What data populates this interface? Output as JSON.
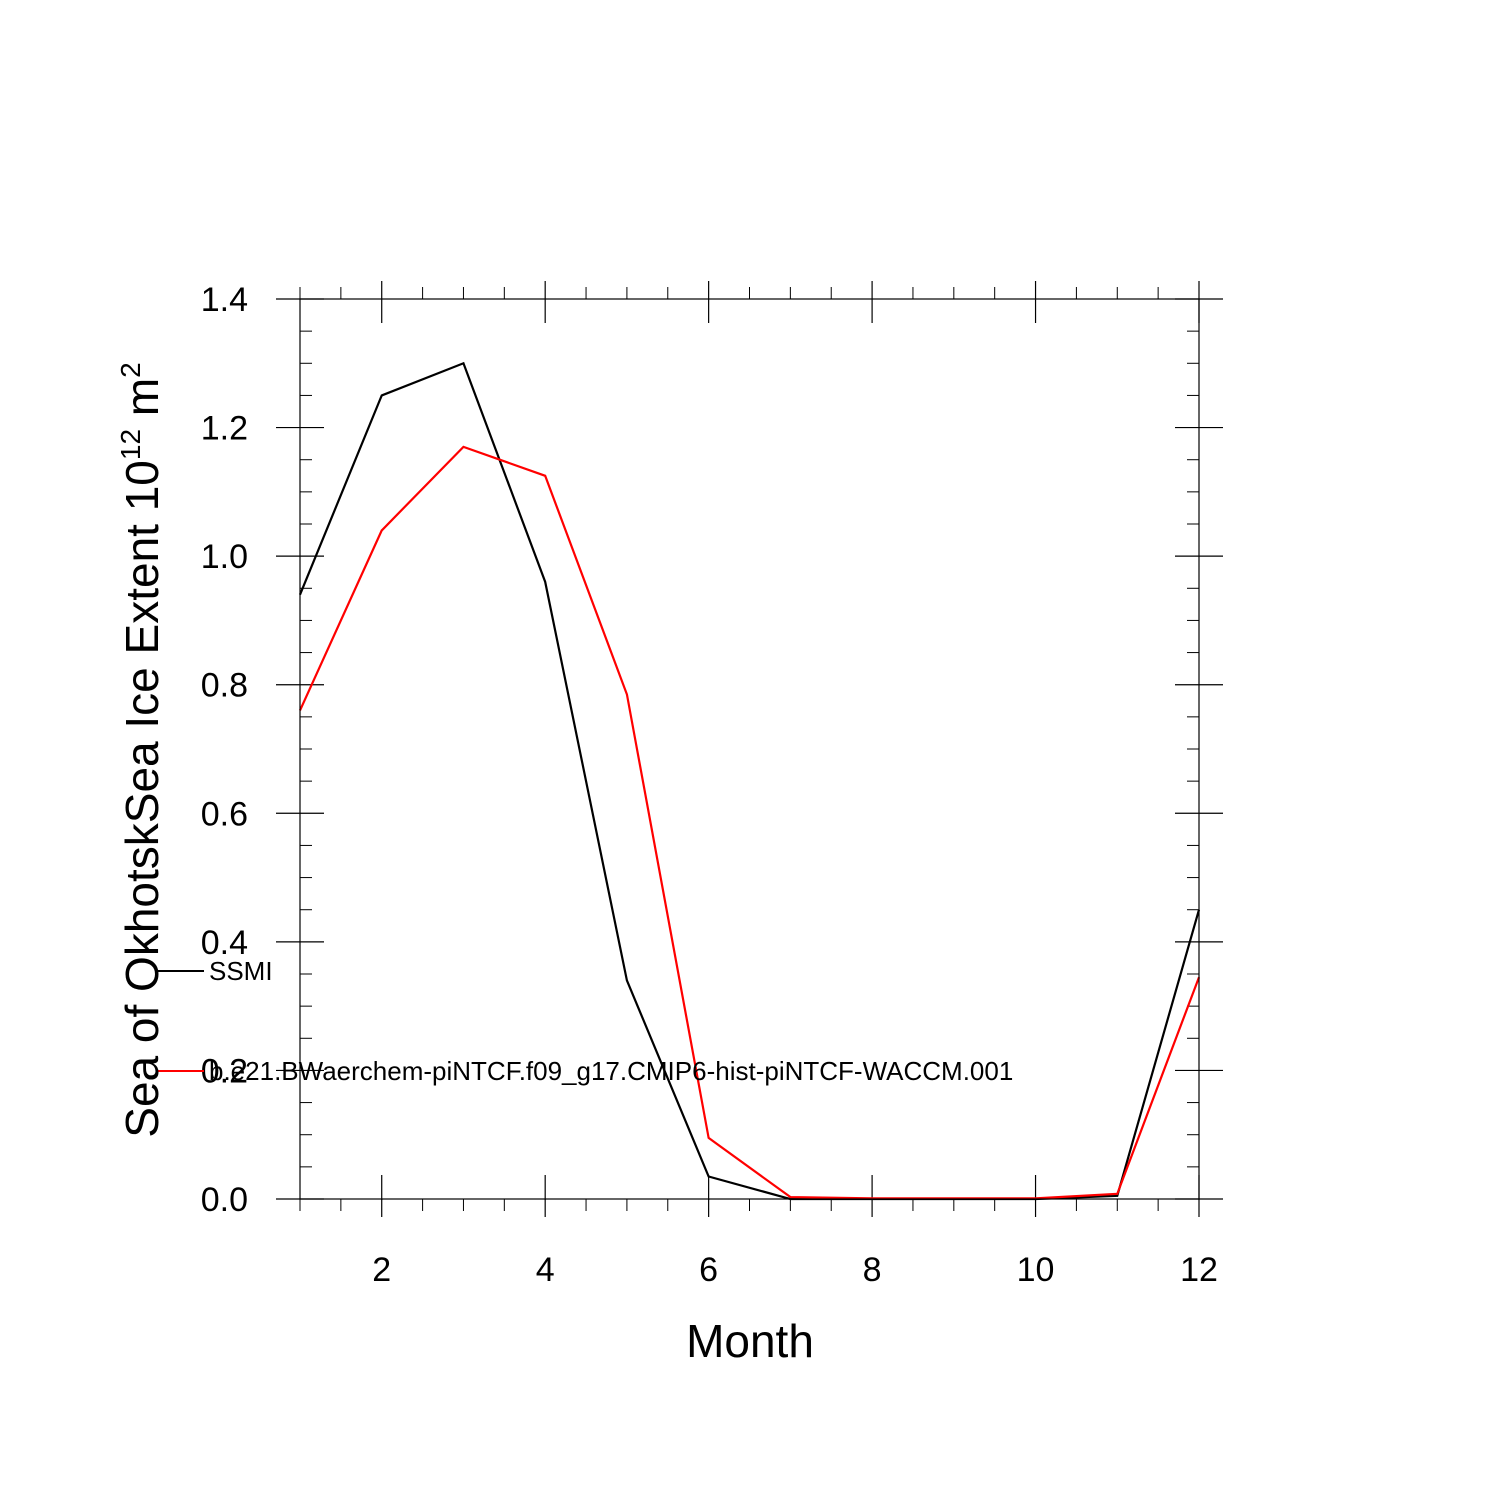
{
  "chart_data": {
    "type": "line",
    "title": "",
    "xlabel": "Month",
    "ylabel": {
      "text": "Sea of OkhotskSea Ice Extent 10",
      "superscript1": "12",
      "unit": " m",
      "superscript2": "2"
    },
    "xlim": [
      1,
      12
    ],
    "ylim": [
      0.0,
      1.4
    ],
    "x_ticks": [
      "2",
      "4",
      "6",
      "8",
      "10",
      "12"
    ],
    "y_ticks": [
      "0.0",
      "0.2",
      "0.4",
      "0.6",
      "0.8",
      "1.0",
      "1.2",
      "1.4"
    ],
    "grid": false,
    "legend_position": "left, inside plot",
    "x": [
      1,
      2,
      3,
      4,
      5,
      6,
      7,
      8,
      9,
      10,
      11,
      12
    ],
    "series": [
      {
        "name": "SSMI",
        "color": "#000000",
        "values": [
          0.94,
          1.25,
          1.3,
          0.96,
          0.34,
          0.035,
          0.0,
          0.0,
          0.0,
          0.0,
          0.005,
          0.45
        ]
      },
      {
        "name": "b.e21.BWaerchem-piNTCF.f09_g17.CMIP6-hist-piNTCF-WACCM.001",
        "color": "#ff0000",
        "values": [
          0.76,
          1.04,
          1.17,
          1.125,
          0.785,
          0.095,
          0.003,
          0.001,
          0.001,
          0.001,
          0.008,
          0.345
        ]
      }
    ]
  }
}
